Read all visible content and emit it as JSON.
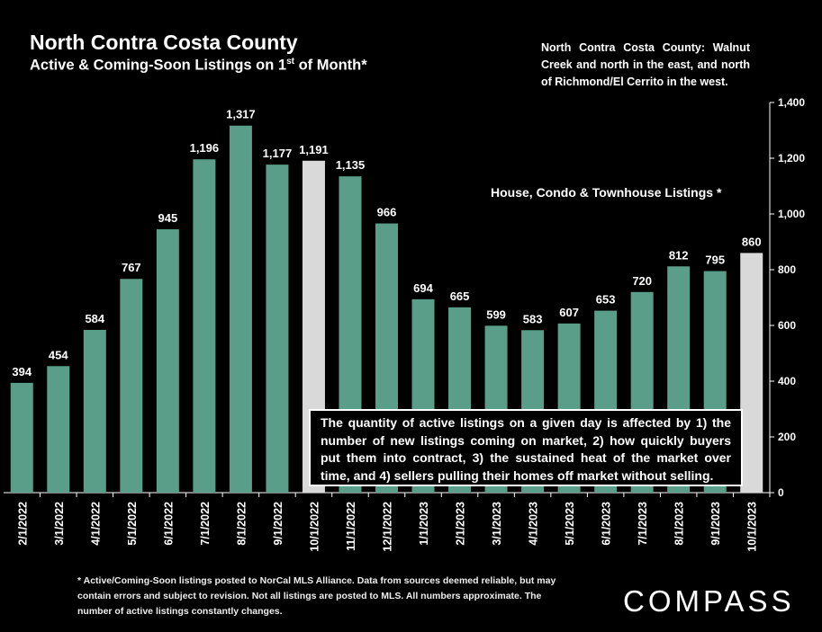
{
  "header": {
    "title": "North Contra Costa County",
    "subtitle_main": "Active & Coming-Soon Listings on 1",
    "subtitle_sup": "st",
    "subtitle_end": " of Month*"
  },
  "region_note": "North Contra Costa County: Walnut Creek and north in the east, and north of Richmond/El Cerrito in the west.",
  "series_label": "House, Condo & Townhouse Listings *",
  "info_box": "The quantity of active listings on a given day is affected by 1) the number of new listings coming on market, 2) how quickly buyers put them into contract, 3) the sustained heat of the market over time, and 4) sellers pulling their homes off market without selling.",
  "footnote": "* Active/Coming-Soon listings posted to NorCal MLS Alliance. Data from sources deemed reliable, but may contain errors and subject to revision. Not all listings are posted to MLS. All numbers approximate. The number of active listings constantly changes.",
  "logo": "COMPASS",
  "colors": {
    "bar": "#5a9e8a",
    "highlight": "#d9d9d9",
    "background": "#000000"
  },
  "chart_data": {
    "type": "bar",
    "categories": [
      "2/1/2022",
      "3/1/2022",
      "4/1/2022",
      "5/1/2022",
      "6/1/2022",
      "7/1/2022",
      "8/1/2022",
      "9/1/2022",
      "10/1/2022",
      "11/1/2022",
      "12/1/2022",
      "1/1/2023",
      "2/1/2023",
      "3/1/2023",
      "4/1/2023",
      "5/1/2023",
      "6/1/2023",
      "7/1/2023",
      "8/1/2023",
      "9/1/2023",
      "10/1/2023"
    ],
    "values": [
      394,
      454,
      584,
      767,
      945,
      1196,
      1317,
      1177,
      1191,
      1135,
      966,
      694,
      665,
      599,
      583,
      607,
      653,
      720,
      812,
      795,
      860
    ],
    "value_labels": [
      "394",
      "454",
      "584",
      "767",
      "945",
      "1,196",
      "1,317",
      "1,177",
      "1,191",
      "1,135",
      "966",
      "694",
      "665",
      "599",
      "583",
      "607",
      "653",
      "720",
      "812",
      "795",
      "860"
    ],
    "highlighted": [
      "10/1/2022",
      "10/1/2023"
    ],
    "ylim": [
      0,
      1400
    ],
    "y_ticks": [
      0,
      200,
      400,
      600,
      800,
      1000,
      1200,
      1400
    ],
    "y_tick_labels": [
      "0",
      "200",
      "400",
      "600",
      "800",
      "1,000",
      "1,200",
      "1,400"
    ],
    "y_axis_side": "right",
    "grid": false
  }
}
